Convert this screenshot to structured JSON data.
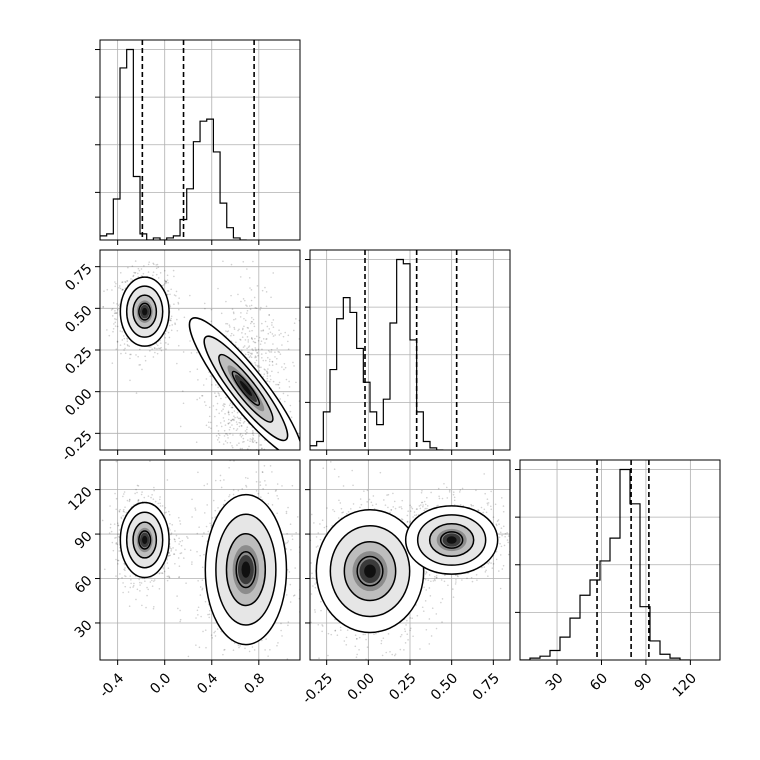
{
  "chart_data": {
    "type": "corner",
    "parameters": [
      {
        "id": "p0",
        "range": [
          -0.55,
          1.15
        ],
        "ticks": [
          "-0.4",
          "0.0",
          "0.4",
          "0.8"
        ],
        "tick_values": [
          -0.4,
          0.0,
          0.4,
          0.8
        ]
      },
      {
        "id": "p1",
        "range": [
          -0.35,
          0.85
        ],
        "ticks": [
          "-0.25",
          "0.00",
          "0.25",
          "0.50",
          "0.75"
        ],
        "tick_values": [
          -0.25,
          0.0,
          0.25,
          0.5,
          0.75
        ]
      },
      {
        "id": "p2",
        "range": [
          5,
          140
        ],
        "ticks": [
          "30",
          "60",
          "90",
          "120"
        ],
        "tick_values": [
          30,
          60,
          90,
          120
        ]
      }
    ],
    "histograms": [
      {
        "param": 0,
        "quantiles": [
          -0.19,
          0.16,
          0.76
        ],
        "bins_start": -0.55,
        "bin_width": 0.0567,
        "counts": [
          2,
          3,
          20,
          84,
          93,
          31,
          3,
          0,
          1,
          0,
          1,
          2,
          10,
          25,
          48,
          58,
          59,
          43,
          18,
          6,
          1,
          0
        ]
      },
      {
        "param": 1,
        "quantiles": [
          -0.02,
          0.29,
          0.53
        ],
        "bins_start": -0.35,
        "bin_width": 0.04,
        "counts": [
          2,
          4,
          18,
          38,
          62,
          72,
          65,
          48,
          32,
          18,
          12,
          24,
          60,
          90,
          88,
          52,
          18,
          4,
          1,
          0
        ]
      },
      {
        "param": 2,
        "quantiles": [
          57,
          80,
          92
        ],
        "bins_start": 5,
        "bin_width": 6.75,
        "counts": [
          0,
          1,
          2,
          5,
          12,
          22,
          34,
          42,
          52,
          64,
          100,
          82,
          28,
          10,
          3,
          1,
          0
        ]
      }
    ],
    "contour_panels": [
      {
        "x_param": 0,
        "y_param": 1,
        "modes": [
          {
            "center": [
              -0.17,
              0.48
            ],
            "spread": [
              0.09,
              0.09
            ],
            "angle": 0
          },
          {
            "center": [
              0.69,
              0.02
            ],
            "spread": [
              0.13,
              0.2
            ],
            "angle": 38
          }
        ]
      },
      {
        "x_param": 0,
        "y_param": 2,
        "modes": [
          {
            "center": [
              -0.17,
              86
            ],
            "spread": [
              0.09,
              11
            ],
            "angle": 0
          },
          {
            "center": [
              0.69,
              66
            ],
            "spread": [
              0.15,
              22
            ],
            "angle": 0
          }
        ]
      },
      {
        "x_param": 1,
        "y_param": 2,
        "modes": [
          {
            "center": [
              0.01,
              65
            ],
            "spread": [
              0.14,
              18
            ],
            "angle": 0
          },
          {
            "center": [
              0.5,
              86
            ],
            "spread": [
              0.12,
              10
            ],
            "angle": 0
          }
        ]
      }
    ]
  }
}
